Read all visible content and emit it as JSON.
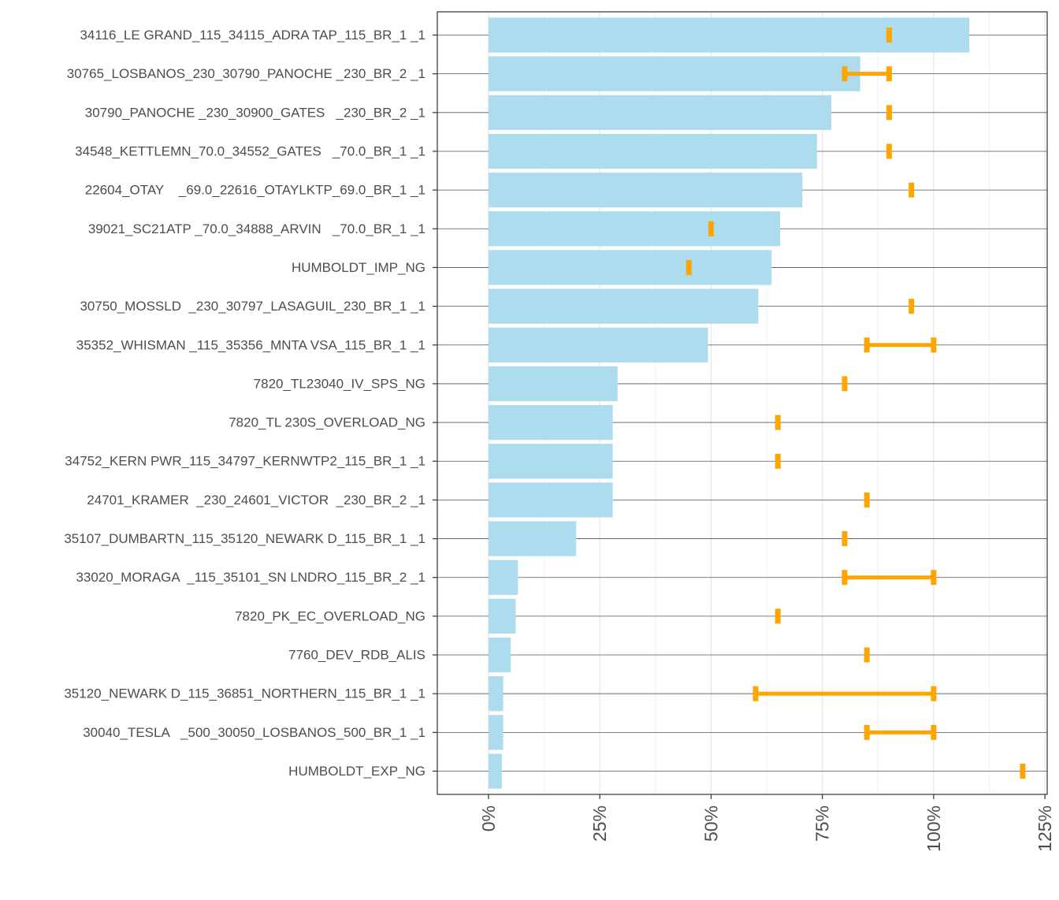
{
  "chart_data": {
    "type": "bar",
    "orientation": "horizontal",
    "title": "",
    "xlabel": "",
    "ylabel": "",
    "xlim": [
      -0.115,
      1.255
    ],
    "x_ticks": [
      0,
      0.25,
      0.5,
      0.75,
      1.0,
      1.25
    ],
    "x_tick_labels": [
      "0%",
      "25%",
      "50%",
      "75%",
      "100%",
      "125%"
    ],
    "grid": true,
    "legend": "none",
    "colors": {
      "bar": "#ADDCEE",
      "range": "#FFA500",
      "grid_major": "#E5E5E5",
      "grid_minor": "#F2F2F2",
      "row_line": "#555555",
      "axis": "#333333"
    },
    "categories": [
      "34116_LE GRAND_115_34115_ADRA TAP_115_BR_1 _1",
      "30765_LOSBANOS_230_30790_PANOCHE _230_BR_2 _1",
      "30790_PANOCHE _230_30900_GATES   _230_BR_2 _1",
      "34548_KETTLEMN_70.0_34552_GATES   _70.0_BR_1 _1",
      "22604_OTAY    _69.0_22616_OTAYLKTP_69.0_BR_1 _1",
      "39021_SC21ATP _70.0_34888_ARVIN   _70.0_BR_1 _1",
      "HUMBOLDT_IMP_NG",
      "30750_MOSSLD  _230_30797_LASAGUIL_230_BR_1 _1",
      "35352_WHISMAN _115_35356_MNTA VSA_115_BR_1 _1",
      "7820_TL23040_IV_SPS_NG",
      "7820_TL 230S_OVERLOAD_NG",
      "34752_KERN PWR_115_34797_KERNWTP2_115_BR_1 _1",
      "24701_KRAMER  _230_24601_VICTOR  _230_BR_2 _1",
      "35107_DUMBARTN_115_35120_NEWARK D_115_BR_1 _1",
      "33020_MORAGA  _115_35101_SN LNDRO_115_BR_2 _1",
      "7820_PK_EC_OVERLOAD_NG",
      "7760_DEV_RDB_ALIS",
      "35120_NEWARK D_115_36851_NORTHERN_115_BR_1 _1",
      "30040_TESLA   _500_30050_LOSBANOS_500_BR_1 _1",
      "HUMBOLDT_EXP_NG"
    ],
    "values": [
      1.08,
      0.835,
      0.77,
      0.738,
      0.705,
      0.655,
      0.636,
      0.606,
      0.493,
      0.29,
      0.279,
      0.279,
      0.279,
      0.197,
      0.066,
      0.061,
      0.05,
      0.033,
      0.033,
      0.03
    ],
    "ranges": [
      [
        0.9,
        0.9
      ],
      [
        0.8,
        0.9
      ],
      [
        0.9,
        0.9
      ],
      [
        0.9,
        0.9
      ],
      [
        0.95,
        0.95
      ],
      [
        0.5,
        0.5
      ],
      [
        0.45,
        0.45
      ],
      [
        0.95,
        0.95
      ],
      [
        0.85,
        1.0
      ],
      [
        0.8,
        0.8
      ],
      [
        0.65,
        0.65
      ],
      [
        0.65,
        0.65
      ],
      [
        0.85,
        0.85
      ],
      [
        0.8,
        0.8
      ],
      [
        0.8,
        1.0
      ],
      [
        0.65,
        0.65
      ],
      [
        0.85,
        0.85
      ],
      [
        0.6,
        1.0
      ],
      [
        0.85,
        1.0
      ],
      [
        1.2,
        1.2
      ]
    ]
  }
}
